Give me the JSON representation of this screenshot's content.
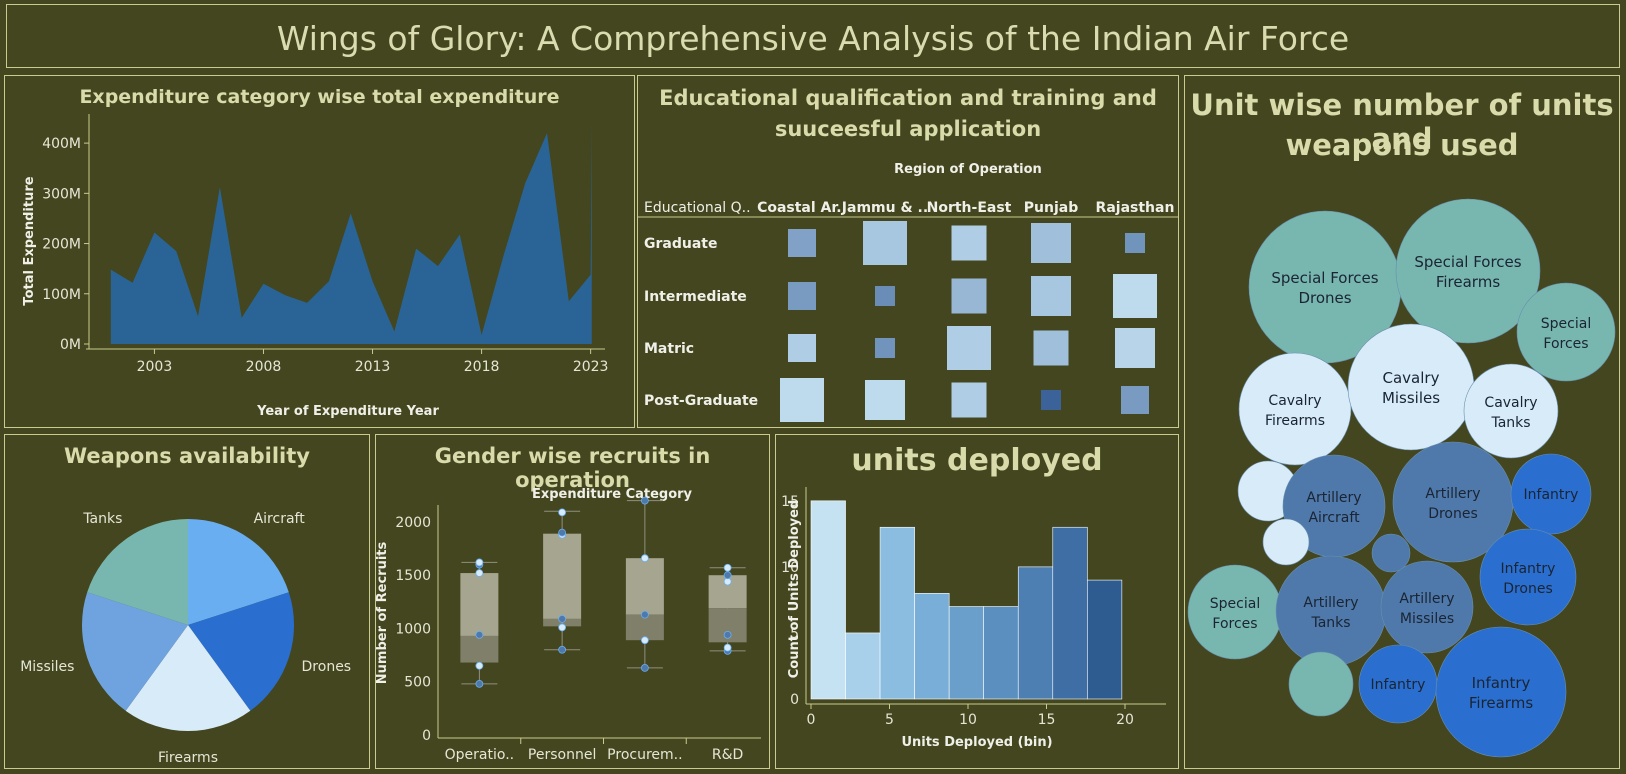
{
  "title": "Wings of Glory: A Comprehensive Analysis of the Indian Air Force",
  "colors": {
    "bg": "#43461e",
    "border": "#c9cc8e",
    "title": "#d9dbab",
    "area": "#2a6496"
  },
  "expenditure": {
    "title": "Expenditure category wise total expenditure"
  },
  "education": {
    "title_line1": "Educational qualification and training and",
    "title_line2": "suuceesful application"
  },
  "units_bubble": {
    "title_line1": "Unit wise number of units and",
    "title_line2": "weapons used"
  },
  "weapons": {
    "title": "Weapons availability"
  },
  "gender": {
    "title": "Gender wise recruits in operation"
  },
  "deployed": {
    "title": "units deployed"
  },
  "chart_data": [
    {
      "id": "expenditure",
      "type": "area",
      "title": "Expenditure category wise total expenditure",
      "xlabel": "Year of Expenditure Year",
      "ylabel": "Total Expenditure",
      "x": [
        2001,
        2002,
        2003,
        2004,
        2005,
        2006,
        2007,
        2008,
        2009,
        2010,
        2011,
        2012,
        2013,
        2014,
        2015,
        2016,
        2017,
        2018,
        2019,
        2020,
        2021,
        2022,
        2023
      ],
      "values": [
        148,
        122,
        222,
        185,
        55,
        312,
        52,
        120,
        97,
        82,
        125,
        260,
        125,
        25,
        190,
        155,
        218,
        18,
        175,
        320,
        420,
        85,
        138
      ],
      "x_ticks": [
        2003,
        2008,
        2013,
        2018,
        2023
      ],
      "y_ticks": [
        "0M",
        "100M",
        "200M",
        "300M",
        "400M"
      ],
      "ylim": [
        0,
        450
      ],
      "extra_2023_end": 445
    },
    {
      "id": "education",
      "type": "heatmap",
      "title": "Educational qualification and training and suuceesful application",
      "column_header": "Region of Operation",
      "row_header": "Educational Q..",
      "columns": [
        "Coastal Ar..",
        "Jammu & ..",
        "North-East",
        "Punjab",
        "Rajasthan"
      ],
      "rows": [
        "Graduate",
        "Intermediate",
        "Matric",
        "Post-Graduate"
      ],
      "size": [
        [
          28,
          44,
          35,
          40,
          20
        ],
        [
          28,
          20,
          35,
          40,
          44
        ],
        [
          28,
          20,
          44,
          35,
          40
        ],
        [
          44,
          40,
          35,
          20,
          28
        ]
      ],
      "shade": [
        [
          0.55,
          0.8,
          0.85,
          0.75,
          0.45
        ],
        [
          0.5,
          0.4,
          0.7,
          0.8,
          0.95
        ],
        [
          0.85,
          0.45,
          0.85,
          0.75,
          0.9
        ],
        [
          0.95,
          0.95,
          0.85,
          0.1,
          0.5
        ]
      ]
    },
    {
      "id": "units_bubble",
      "type": "bubble",
      "title": "Unit wise number of units and weapons used",
      "bubbles": [
        {
          "label1": "Special Forces",
          "label2": "Drones",
          "color": "#78b7b0"
        },
        {
          "label1": "Special Forces",
          "label2": "Firearms",
          "color": "#78b7b0"
        },
        {
          "label1": "Special",
          "label2": "Forces",
          "color": "#78b7b0"
        },
        {
          "label1": "Cavalry",
          "label2": "Firearms",
          "color": "#d7ebf8"
        },
        {
          "label1": "Cavalry",
          "label2": "Missiles",
          "color": "#d7ebf8"
        },
        {
          "label1": "Cavalry",
          "label2": "Tanks",
          "color": "#d7ebf8"
        },
        {
          "label1": "",
          "label2": "",
          "color": "#d7ebf8"
        },
        {
          "label1": "Artillery",
          "label2": "Aircraft",
          "color": "#4e79aa"
        },
        {
          "label1": "Artillery",
          "label2": "Drones",
          "color": "#4e79aa"
        },
        {
          "label1": "Infantry",
          "label2": "",
          "color": "#2a6fcf"
        },
        {
          "label1": "",
          "label2": "",
          "color": "#d7ebf8"
        },
        {
          "label1": "Special",
          "label2": "Forces",
          "color": "#78b7b0"
        },
        {
          "label1": "Artillery",
          "label2": "Tanks",
          "color": "#4e79aa"
        },
        {
          "label1": "",
          "label2": "",
          "color": "#4e79aa"
        },
        {
          "label1": "Artillery",
          "label2": "Missiles",
          "color": "#4e79aa"
        },
        {
          "label1": "Infantry",
          "label2": "Drones",
          "color": "#2a6fcf"
        },
        {
          "label1": "",
          "label2": "",
          "color": "#78b7b0"
        },
        {
          "label1": "Infantry",
          "label2": "",
          "color": "#2a6fcf"
        },
        {
          "label1": "Infantry",
          "label2": "Firearms",
          "color": "#2a6fcf"
        }
      ]
    },
    {
      "id": "weapons",
      "type": "pie",
      "title": "Weapons availability",
      "categories": [
        "Aircraft",
        "Drones",
        "Firearms",
        "Missiles",
        "Tanks"
      ],
      "values": [
        20,
        20,
        20,
        20,
        20
      ],
      "colors": [
        "#6aaef2",
        "#2a6fcf",
        "#d7ebf8",
        "#6fa3df",
        "#78b7b0"
      ]
    },
    {
      "id": "gender",
      "type": "box",
      "title": "Gender wise recruits in operation",
      "header": "Expenditure Category",
      "ylabel": "Number of Recruits",
      "categories": [
        "Operatio..",
        "Personnel",
        "Procurem..",
        "R&D"
      ],
      "y_ticks": [
        0,
        500,
        1000,
        1500,
        2000
      ],
      "ylim": [
        0,
        2300
      ],
      "boxes": [
        {
          "min": 480,
          "q1": 680,
          "median": 930,
          "q3": 1520,
          "max": 1620,
          "points": [
            480,
            650,
            940,
            1520,
            1600,
            1620
          ]
        },
        {
          "min": 800,
          "q1": 1020,
          "median": 1090,
          "q3": 1890,
          "max": 2100,
          "points": [
            800,
            1010,
            1090,
            1880,
            1900,
            2090
          ]
        },
        {
          "min": 630,
          "q1": 890,
          "median": 1130,
          "q3": 1660,
          "max": 2200,
          "points": [
            630,
            890,
            1130,
            1660,
            2200
          ]
        },
        {
          "min": 790,
          "q1": 870,
          "median": 1190,
          "q3": 1500,
          "max": 1570,
          "points": [
            790,
            820,
            940,
            1440,
            1500,
            1570
          ]
        }
      ]
    },
    {
      "id": "deployed",
      "type": "bar",
      "title": "units deployed",
      "xlabel": "Units Deployed (bin)",
      "ylabel": "Count of Units Deployed",
      "bin_width": 2.2,
      "bin_starts": [
        0,
        2.2,
        4.4,
        6.6,
        8.8,
        11,
        13.2,
        15.4,
        17.6
      ],
      "values": [
        15,
        5,
        13,
        8,
        7,
        7,
        10,
        13,
        9
      ],
      "colors": [
        "#c4e2f2",
        "#a9d0ea",
        "#8bbde1",
        "#78aed7",
        "#6a9fcb",
        "#5a8fc0",
        "#4d7fb2",
        "#3f6ea4",
        "#2f5c90"
      ],
      "x_ticks": [
        0,
        5,
        10,
        15,
        20
      ],
      "y_ticks": [
        0,
        5,
        10,
        15
      ],
      "ylim": [
        0,
        16.5
      ]
    }
  ]
}
